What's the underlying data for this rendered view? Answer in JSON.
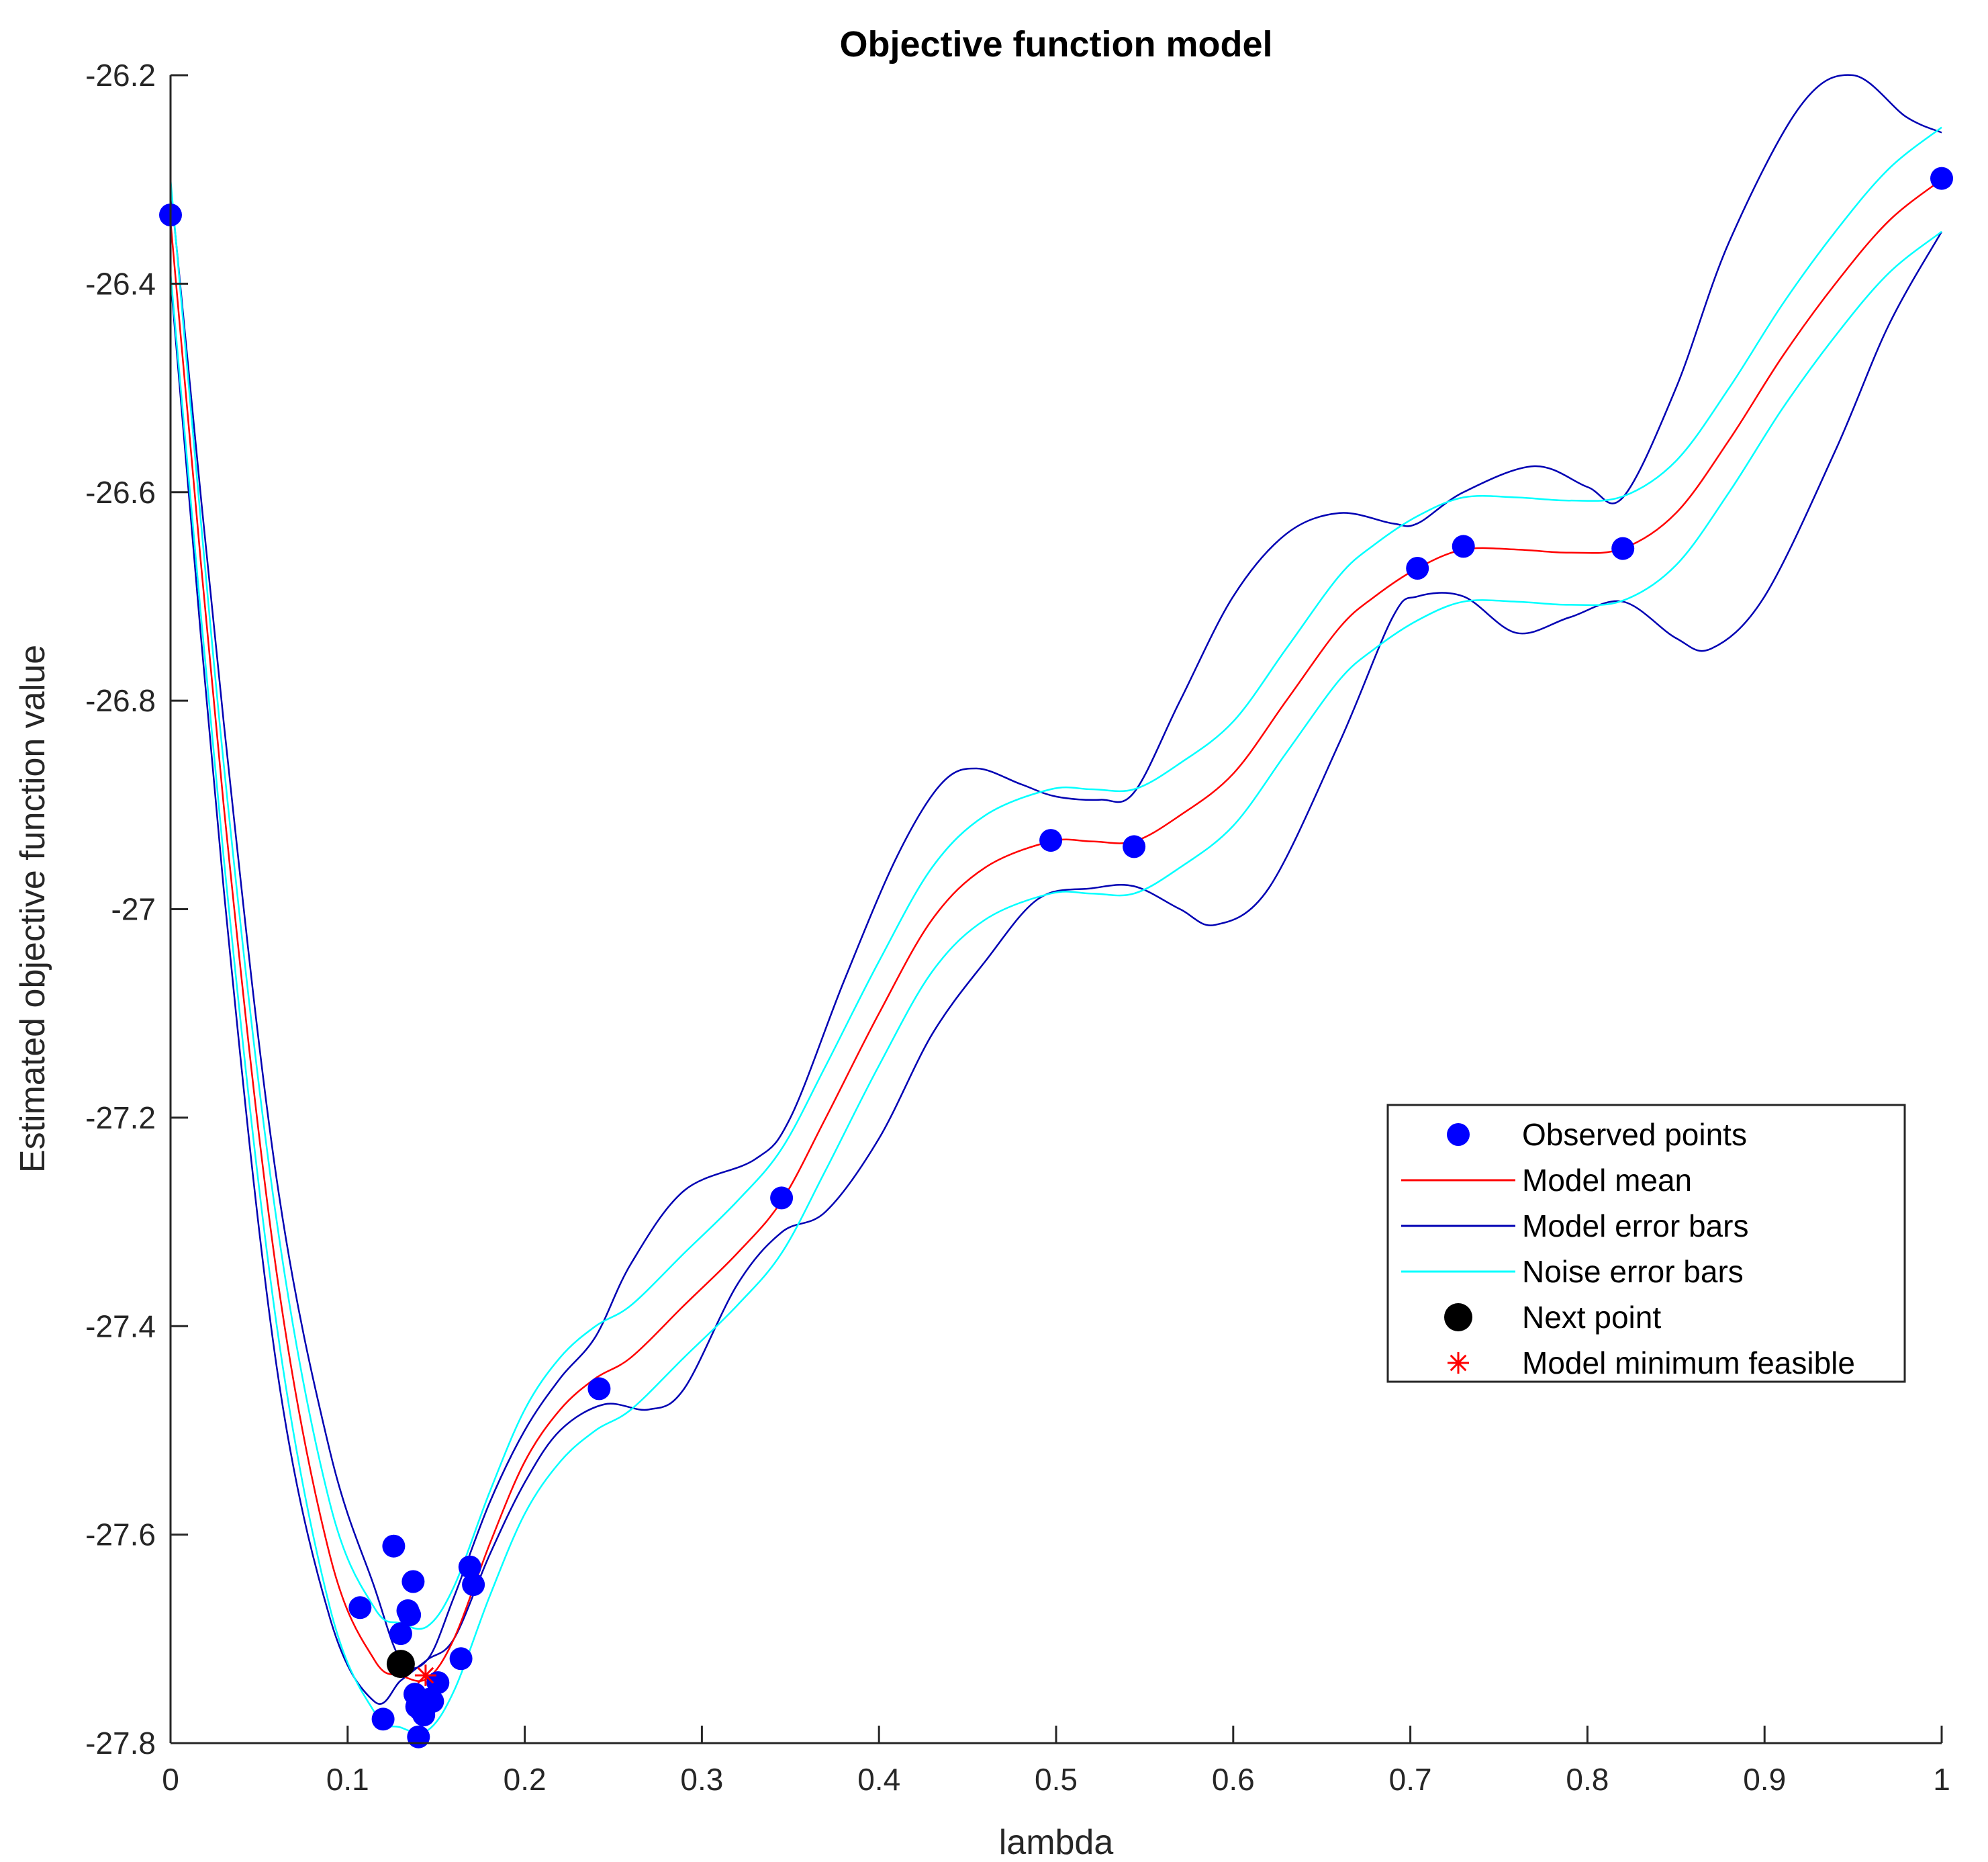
{
  "chart_data": {
    "type": "line",
    "title": "Objective function model",
    "xlabel": "lambda",
    "ylabel": "Estimated objective function value",
    "xlim": [
      0,
      1
    ],
    "ylim": [
      -27.8,
      -26.2
    ],
    "xticks": [
      0,
      0.1,
      0.2,
      0.3,
      0.4,
      0.5,
      0.6,
      0.7,
      0.8,
      0.9,
      1
    ],
    "xtick_labels": [
      "0",
      "0.1",
      "0.2",
      "0.3",
      "0.4",
      "0.5",
      "0.6",
      "0.7",
      "0.8",
      "0.9",
      "1"
    ],
    "yticks": [
      -27.8,
      -27.6,
      -27.4,
      -27.2,
      -27,
      -26.8,
      -26.6,
      -26.4,
      -26.2
    ],
    "ytick_labels": [
      "-27.8",
      "-27.6",
      "-27.4",
      "-27.2",
      "-27",
      "-26.8",
      "-26.6",
      "-26.4",
      "-26.2"
    ],
    "legend_position": "middle-right",
    "colors": {
      "observed": "#0000ff",
      "model_mean": "#ff0000",
      "model_error": "#0000b3",
      "noise_error": "#00ffff",
      "next_point": "#000000",
      "model_min": "#ff0000"
    },
    "series": [
      {
        "name": "Observed points",
        "kind": "scatter",
        "points": [
          [
            0,
            -26.334
          ],
          [
            0.107,
            -27.67
          ],
          [
            0.12,
            -27.777
          ],
          [
            0.126,
            -27.611
          ],
          [
            0.13,
            -27.695
          ],
          [
            0.134,
            -27.673
          ],
          [
            0.135,
            -27.677
          ],
          [
            0.137,
            -27.645
          ],
          [
            0.138,
            -27.753
          ],
          [
            0.139,
            -27.765
          ],
          [
            0.14,
            -27.794
          ],
          [
            0.141,
            -27.768
          ],
          [
            0.143,
            -27.773
          ],
          [
            0.146,
            -27.758
          ],
          [
            0.148,
            -27.76
          ],
          [
            0.151,
            -27.742
          ],
          [
            0.164,
            -27.719
          ],
          [
            0.169,
            -27.631
          ],
          [
            0.171,
            -27.648
          ],
          [
            0.242,
            -27.46
          ],
          [
            0.345,
            -27.277
          ],
          [
            0.497,
            -26.934
          ],
          [
            0.544,
            -26.94
          ],
          [
            0.704,
            -26.673
          ],
          [
            0.73,
            -26.652
          ],
          [
            0.82,
            -26.654
          ],
          [
            1.0,
            -26.299
          ]
        ]
      },
      {
        "name": "Model mean",
        "kind": "line",
        "points": [
          [
            0,
            -26.34
          ],
          [
            0.03,
            -26.9
          ],
          [
            0.06,
            -27.35
          ],
          [
            0.09,
            -27.62
          ],
          [
            0.115,
            -27.72
          ],
          [
            0.13,
            -27.735
          ],
          [
            0.145,
            -27.738
          ],
          [
            0.16,
            -27.7
          ],
          [
            0.18,
            -27.61
          ],
          [
            0.2,
            -27.53
          ],
          [
            0.22,
            -27.48
          ],
          [
            0.24,
            -27.45
          ],
          [
            0.26,
            -27.43
          ],
          [
            0.29,
            -27.38
          ],
          [
            0.32,
            -27.33
          ],
          [
            0.345,
            -27.28
          ],
          [
            0.37,
            -27.2
          ],
          [
            0.4,
            -27.1
          ],
          [
            0.43,
            -27.01
          ],
          [
            0.46,
            -26.96
          ],
          [
            0.497,
            -26.935
          ],
          [
            0.52,
            -26.935
          ],
          [
            0.544,
            -26.935
          ],
          [
            0.57,
            -26.91
          ],
          [
            0.6,
            -26.87
          ],
          [
            0.63,
            -26.8
          ],
          [
            0.66,
            -26.73
          ],
          [
            0.68,
            -26.7
          ],
          [
            0.704,
            -26.673
          ],
          [
            0.73,
            -26.655
          ],
          [
            0.76,
            -26.655
          ],
          [
            0.79,
            -26.658
          ],
          [
            0.82,
            -26.654
          ],
          [
            0.85,
            -26.62
          ],
          [
            0.88,
            -26.55
          ],
          [
            0.91,
            -26.47
          ],
          [
            0.94,
            -26.4
          ],
          [
            0.97,
            -26.34
          ],
          [
            1.0,
            -26.3
          ]
        ]
      },
      {
        "name": "Model error bars",
        "kind": "band",
        "upper": [
          [
            0,
            -26.305
          ],
          [
            0.03,
            -26.82
          ],
          [
            0.06,
            -27.26
          ],
          [
            0.09,
            -27.52
          ],
          [
            0.115,
            -27.65
          ],
          [
            0.13,
            -27.72
          ],
          [
            0.145,
            -27.72
          ],
          [
            0.16,
            -27.66
          ],
          [
            0.18,
            -27.57
          ],
          [
            0.2,
            -27.5
          ],
          [
            0.22,
            -27.45
          ],
          [
            0.24,
            -27.41
          ],
          [
            0.26,
            -27.34
          ],
          [
            0.29,
            -27.27
          ],
          [
            0.33,
            -27.24
          ],
          [
            0.35,
            -27.2
          ],
          [
            0.38,
            -27.07
          ],
          [
            0.41,
            -26.95
          ],
          [
            0.435,
            -26.88
          ],
          [
            0.455,
            -26.865
          ],
          [
            0.48,
            -26.88
          ],
          [
            0.5,
            -26.892
          ],
          [
            0.525,
            -26.895
          ],
          [
            0.544,
            -26.888
          ],
          [
            0.57,
            -26.8
          ],
          [
            0.6,
            -26.7
          ],
          [
            0.63,
            -26.64
          ],
          [
            0.66,
            -26.62
          ],
          [
            0.69,
            -26.63
          ],
          [
            0.704,
            -26.63
          ],
          [
            0.73,
            -26.6
          ],
          [
            0.77,
            -26.575
          ],
          [
            0.8,
            -26.595
          ],
          [
            0.82,
            -26.605
          ],
          [
            0.85,
            -26.5
          ],
          [
            0.88,
            -26.36
          ],
          [
            0.92,
            -26.23
          ],
          [
            0.95,
            -26.2
          ],
          [
            0.98,
            -26.24
          ],
          [
            1.0,
            -26.255
          ]
        ],
        "lower": [
          [
            0,
            -26.395
          ],
          [
            0.03,
            -26.98
          ],
          [
            0.06,
            -27.44
          ],
          [
            0.09,
            -27.68
          ],
          [
            0.115,
            -27.76
          ],
          [
            0.13,
            -27.74
          ],
          [
            0.145,
            -27.72
          ],
          [
            0.16,
            -27.7
          ],
          [
            0.18,
            -27.62
          ],
          [
            0.2,
            -27.55
          ],
          [
            0.22,
            -27.5
          ],
          [
            0.245,
            -27.475
          ],
          [
            0.27,
            -27.48
          ],
          [
            0.29,
            -27.46
          ],
          [
            0.32,
            -27.36
          ],
          [
            0.345,
            -27.31
          ],
          [
            0.37,
            -27.29
          ],
          [
            0.4,
            -27.22
          ],
          [
            0.43,
            -27.12
          ],
          [
            0.46,
            -27.05
          ],
          [
            0.49,
            -26.99
          ],
          [
            0.52,
            -26.98
          ],
          [
            0.544,
            -26.978
          ],
          [
            0.57,
            -27.0
          ],
          [
            0.59,
            -27.015
          ],
          [
            0.62,
            -26.98
          ],
          [
            0.66,
            -26.84
          ],
          [
            0.69,
            -26.72
          ],
          [
            0.704,
            -26.7
          ],
          [
            0.73,
            -26.7
          ],
          [
            0.76,
            -26.735
          ],
          [
            0.79,
            -26.72
          ],
          [
            0.82,
            -26.705
          ],
          [
            0.85,
            -26.74
          ],
          [
            0.87,
            -26.75
          ],
          [
            0.9,
            -26.7
          ],
          [
            0.94,
            -26.56
          ],
          [
            0.97,
            -26.44
          ],
          [
            1.0,
            -26.35
          ]
        ]
      },
      {
        "name": "Noise error bars",
        "kind": "band",
        "upper": [
          [
            0,
            -26.3
          ],
          [
            0.03,
            -26.86
          ],
          [
            0.06,
            -27.3
          ],
          [
            0.09,
            -27.57
          ],
          [
            0.115,
            -27.67
          ],
          [
            0.13,
            -27.685
          ],
          [
            0.145,
            -27.688
          ],
          [
            0.16,
            -27.65
          ],
          [
            0.18,
            -27.56
          ],
          [
            0.2,
            -27.48
          ],
          [
            0.22,
            -27.43
          ],
          [
            0.24,
            -27.4
          ],
          [
            0.26,
            -27.38
          ],
          [
            0.29,
            -27.33
          ],
          [
            0.32,
            -27.28
          ],
          [
            0.345,
            -27.23
          ],
          [
            0.37,
            -27.15
          ],
          [
            0.4,
            -27.05
          ],
          [
            0.43,
            -26.96
          ],
          [
            0.46,
            -26.91
          ],
          [
            0.497,
            -26.885
          ],
          [
            0.52,
            -26.885
          ],
          [
            0.544,
            -26.885
          ],
          [
            0.57,
            -26.86
          ],
          [
            0.6,
            -26.82
          ],
          [
            0.63,
            -26.75
          ],
          [
            0.66,
            -26.68
          ],
          [
            0.68,
            -26.65
          ],
          [
            0.704,
            -26.623
          ],
          [
            0.73,
            -26.605
          ],
          [
            0.76,
            -26.605
          ],
          [
            0.79,
            -26.608
          ],
          [
            0.82,
            -26.604
          ],
          [
            0.85,
            -26.57
          ],
          [
            0.88,
            -26.5
          ],
          [
            0.91,
            -26.42
          ],
          [
            0.94,
            -26.35
          ],
          [
            0.97,
            -26.29
          ],
          [
            1.0,
            -26.25
          ]
        ],
        "lower": [
          [
            0,
            -26.39
          ],
          [
            0.03,
            -26.95
          ],
          [
            0.06,
            -27.4
          ],
          [
            0.09,
            -27.67
          ],
          [
            0.115,
            -27.77
          ],
          [
            0.13,
            -27.785
          ],
          [
            0.145,
            -27.788
          ],
          [
            0.16,
            -27.75
          ],
          [
            0.18,
            -27.66
          ],
          [
            0.2,
            -27.58
          ],
          [
            0.22,
            -27.53
          ],
          [
            0.24,
            -27.5
          ],
          [
            0.26,
            -27.48
          ],
          [
            0.29,
            -27.43
          ],
          [
            0.32,
            -27.38
          ],
          [
            0.345,
            -27.33
          ],
          [
            0.37,
            -27.25
          ],
          [
            0.4,
            -27.15
          ],
          [
            0.43,
            -27.06
          ],
          [
            0.46,
            -27.01
          ],
          [
            0.497,
            -26.985
          ],
          [
            0.52,
            -26.985
          ],
          [
            0.544,
            -26.985
          ],
          [
            0.57,
            -26.96
          ],
          [
            0.6,
            -26.92
          ],
          [
            0.63,
            -26.85
          ],
          [
            0.66,
            -26.78
          ],
          [
            0.68,
            -26.75
          ],
          [
            0.704,
            -26.723
          ],
          [
            0.73,
            -26.705
          ],
          [
            0.76,
            -26.705
          ],
          [
            0.79,
            -26.708
          ],
          [
            0.82,
            -26.704
          ],
          [
            0.85,
            -26.67
          ],
          [
            0.88,
            -26.6
          ],
          [
            0.91,
            -26.52
          ],
          [
            0.94,
            -26.45
          ],
          [
            0.97,
            -26.39
          ],
          [
            1.0,
            -26.35
          ]
        ]
      },
      {
        "name": "Next point",
        "kind": "scatter",
        "points": [
          [
            0.13,
            -27.724
          ]
        ]
      },
      {
        "name": "Model minimum feasible",
        "kind": "marker",
        "points": [
          [
            0.144,
            -27.735
          ]
        ]
      }
    ]
  }
}
